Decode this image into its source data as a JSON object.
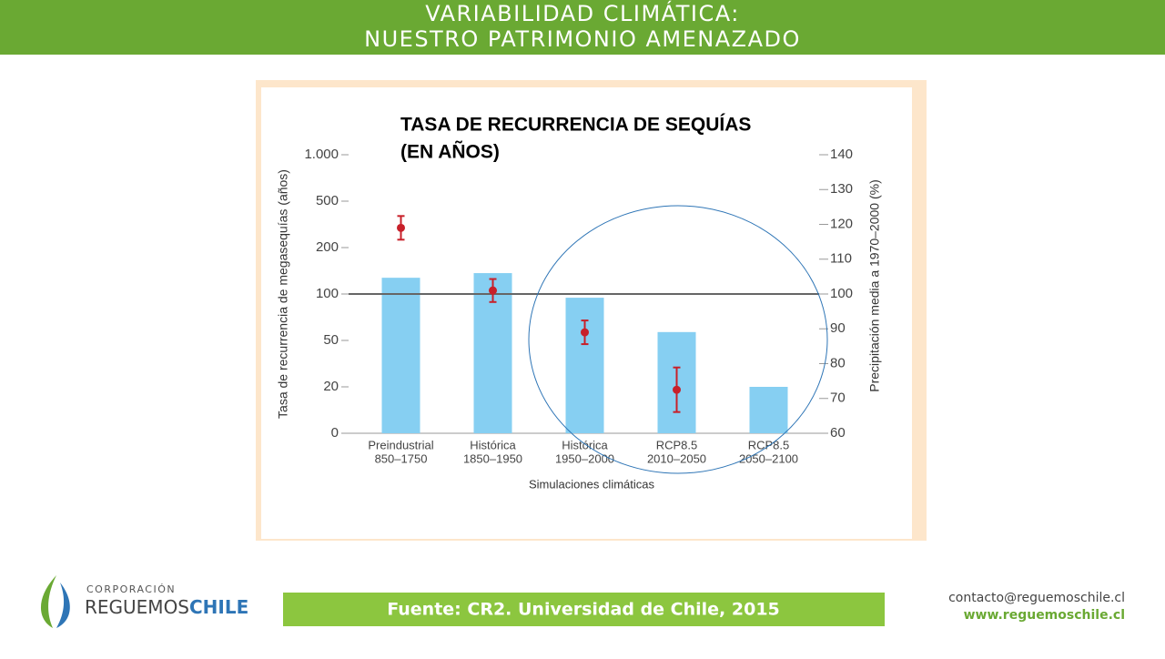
{
  "header": {
    "title_lines": [
      "VARIABILIDAD CLIMÁTICA:",
      "NUESTRO PATRIMONIO AMENAZADO"
    ]
  },
  "chart_data": {
    "type": "bar-dot",
    "title_lines": [
      "TASA DE RECURRENCIA DE SEQUÍAS",
      "(EN AÑOS)"
    ],
    "y_label": "Tasa de recurrencia de megasequías (años)",
    "y2_label": "Precipitación media a 1970–2000 (%)",
    "x_label": "Simulaciones climáticas",
    "categories": [
      [
        "Preindustrial",
        "850–1750"
      ],
      [
        "Histórica",
        "1850–1950"
      ],
      [
        "Histórica",
        "1950–2000"
      ],
      [
        "RCP8.5",
        "2010–2050"
      ],
      [
        "RCP8.5",
        "2050–2100"
      ]
    ],
    "series": [
      {
        "name": "Tasa de recurrencia",
        "color": "#86cff2",
        "values": [
          135,
          145,
          96,
          59,
          20
        ]
      },
      {
        "name": "Precipitación media",
        "color": "#c8202a",
        "axis": "y2",
        "values": [
          119,
          101,
          89,
          72.5,
          null
        ],
        "errors": [
          3.4,
          3.3,
          3.4,
          6.4,
          null
        ]
      }
    ],
    "ylim": [
      0,
      1000
    ],
    "yticks": [
      0,
      20,
      50,
      100,
      200,
      500,
      {
        "value": 1000,
        "label": "1.000"
      }
    ],
    "y2lim": [
      60,
      140
    ],
    "y2ticks": [
      60,
      70,
      80,
      90,
      100,
      110,
      120,
      130,
      140
    ],
    "reference_line": 100,
    "grid": false
  },
  "footer": {
    "logo_top": "CORPORACIÓN",
    "logo_main": "REGUEMOS",
    "logo_accent": "CHILE",
    "source": "Fuente: CR2. Universidad de Chile, 2015",
    "email": "contacto@reguemoschile.cl",
    "web": "www.reguemoschile.cl"
  }
}
